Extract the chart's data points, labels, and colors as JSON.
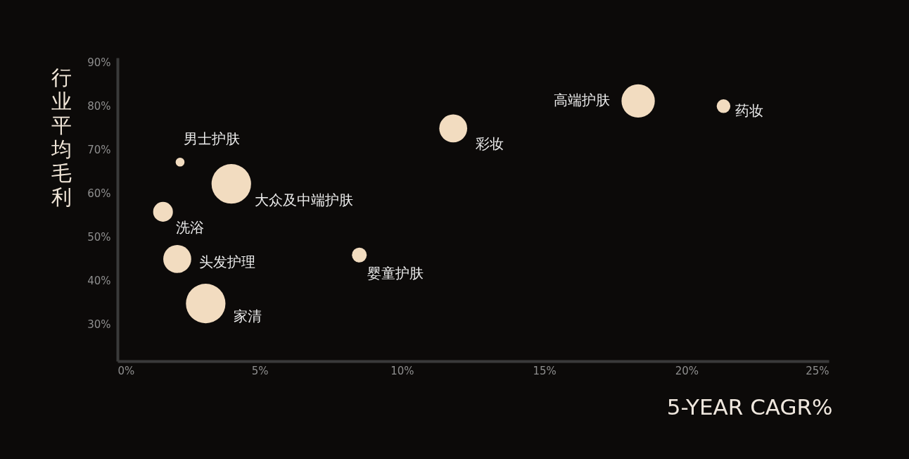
{
  "chart_data": {
    "type": "bubble",
    "xlabel": "5-YEAR CAGR%",
    "ylabel": "行业平均毛利",
    "xlim": [
      0,
      25
    ],
    "xticks": [
      {
        "value": 0,
        "label": "0%"
      },
      {
        "value": 5,
        "label": "5%"
      },
      {
        "value": 10,
        "label": "10%"
      },
      {
        "value": 15,
        "label": "15%"
      },
      {
        "value": 20,
        "label": "20%"
      },
      {
        "value": 25,
        "label": "25%"
      }
    ],
    "ylim": [
      21.5,
      91
    ],
    "yticks": [
      {
        "value": 30,
        "label": "30%"
      },
      {
        "value": 40,
        "label": "40%"
      },
      {
        "value": 50,
        "label": "50%"
      },
      {
        "value": 60,
        "label": "60%"
      },
      {
        "value": 70,
        "label": "70%"
      },
      {
        "value": 80,
        "label": "80%"
      },
      {
        "value": 90,
        "label": "90%"
      }
    ],
    "series": [
      {
        "name": "男士护肤",
        "color": "#f2dcc0",
        "x": [
          2.2
        ],
        "values": [
          67.1
        ],
        "sizes": [
          0.05
        ]
      },
      {
        "name": "大众及中端护肤",
        "color": "#f2dcc0",
        "x": [
          4.0
        ],
        "values": [
          62.1
        ],
        "sizes": [
          1
        ]
      },
      {
        "name": "洗浴",
        "color": "#f2dcc0",
        "x": [
          1.6
        ],
        "values": [
          55.7
        ],
        "sizes": [
          0.25
        ]
      },
      {
        "name": "头发护理",
        "color": "#f2dcc0",
        "x": [
          2.1
        ],
        "values": [
          44.9
        ],
        "sizes": [
          0.5
        ]
      },
      {
        "name": "家清",
        "color": "#f2dcc0",
        "x": [
          3.1
        ],
        "values": [
          34.7
        ],
        "sizes": [
          1
        ]
      },
      {
        "name": "婴童护肤",
        "color": "#f2dcc0",
        "x": [
          8.5
        ],
        "values": [
          45.8
        ],
        "sizes": [
          0.14
        ]
      },
      {
        "name": "彩妆",
        "color": "#f2dcc0",
        "x": [
          11.8
        ],
        "values": [
          74.8
        ],
        "sizes": [
          0.5
        ]
      },
      {
        "name": "高端护肤",
        "color": "#f2dcc0",
        "x": [
          18.3
        ],
        "values": [
          81.1
        ],
        "sizes": [
          0.71
        ]
      },
      {
        "name": "药妆",
        "color": "#f2dcc0",
        "x": [
          21.3
        ],
        "values": [
          79.9
        ],
        "sizes": [
          0.12
        ]
      }
    ]
  }
}
